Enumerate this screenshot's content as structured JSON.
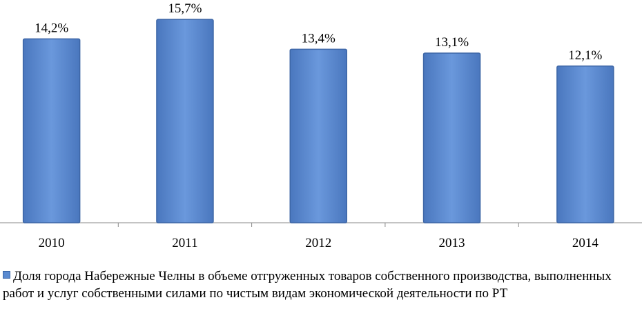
{
  "chart_data": {
    "type": "bar",
    "categories": [
      "2010",
      "2011",
      "2012",
      "2013",
      "2014"
    ],
    "series": [
      {
        "name": "Доля города Набережные Челны в объеме отгруженных товаров собственного производства, выполненных работ и услуг собственными силами по чистым видам экономической деятельности по РТ",
        "color": "#5a8ad0",
        "values": [
          14.2,
          15.7,
          13.4,
          13.1,
          12.1
        ],
        "value_labels": [
          "14,2%",
          "15,7%",
          "13,4%",
          "13,1%",
          "12,1%"
        ]
      }
    ],
    "ylim": [
      0,
      17.2
    ],
    "legend": "bottom"
  }
}
